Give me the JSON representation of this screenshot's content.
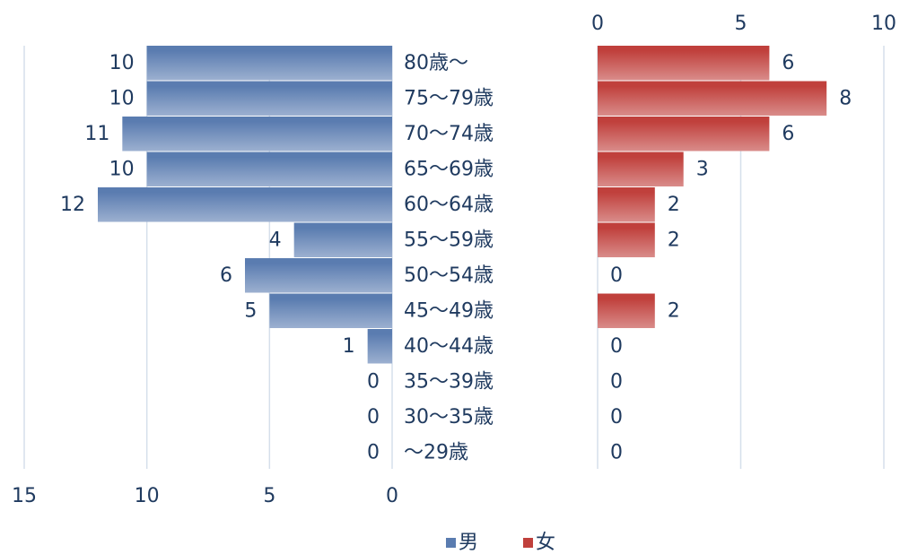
{
  "chart_data": {
    "type": "bar",
    "orientation": "horizontal",
    "categories": [
      "80歳～",
      "75～79歳",
      "70～74歳",
      "65～69歳",
      "60～64歳",
      "55～59歳",
      "50～54歳",
      "45～49歳",
      "40～44歳",
      "35～39歳",
      "30～35歳",
      "～29歳"
    ],
    "series": [
      {
        "name": "男",
        "color": "#5a7cb0",
        "values": [
          10,
          10,
          11,
          10,
          12,
          4,
          6,
          5,
          1,
          0,
          0,
          0
        ]
      },
      {
        "name": "女",
        "color": "#c0403c",
        "axis": "x2",
        "values": [
          6,
          8,
          6,
          3,
          2,
          2,
          0,
          2,
          0,
          0,
          0,
          0
        ]
      }
    ],
    "xlim": [
      15,
      0
    ],
    "xticks": [
      15,
      10,
      5,
      0
    ],
    "x2lim": [
      0,
      10
    ],
    "x2ticks": [
      0,
      5,
      10
    ],
    "grid": true,
    "legend": "bottom"
  }
}
